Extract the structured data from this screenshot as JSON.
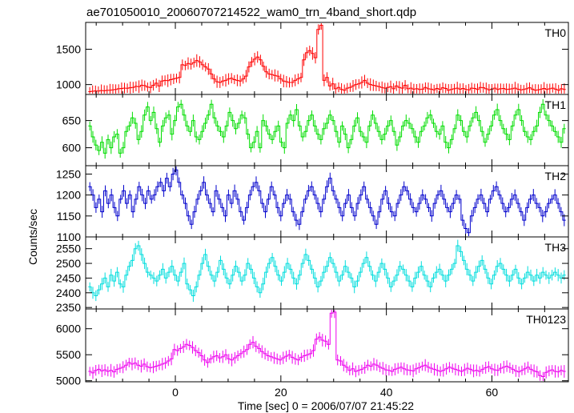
{
  "title": "ae701050010_20060707214522_wam0_trn_4band_short.qdp",
  "ylabel": "Counts/sec",
  "xlabel": "Time [sec] 0 = 2006/07/07 21:45:22",
  "chart_data": {
    "type": "line",
    "title": "ae701050010_20060707214522_wam0_trn_4band_short.qdp",
    "xlabel": "Time [sec] 0 = 2006/07/07 21:45:22",
    "ylabel": "Counts/sec",
    "xlim": [
      -17,
      74.5
    ],
    "x_start": -16.5,
    "bin_width": 1,
    "xticks": [
      0,
      20,
      40,
      60
    ],
    "grid": false,
    "panels": [
      {
        "name": "TH0",
        "color": "#ff0000",
        "ylim": [
          860,
          1880
        ],
        "yticks": [
          1000,
          1500
        ],
        "values": [
          900,
          905,
          910,
          908,
          915,
          912,
          918,
          920,
          925,
          930,
          940,
          945,
          950,
          948,
          955,
          960,
          975,
          970,
          990,
          985,
          965,
          960,
          990,
          1020,
          980,
          1050,
          1060,
          1055,
          1070,
          1080,
          1090,
          1100,
          1280,
          1270,
          1300,
          1290,
          1310,
          1340,
          1320,
          1280,
          1250,
          1220,
          1150,
          1080,
          1040,
          1030,
          1050,
          1060,
          1080,
          1090,
          1070,
          1060,
          1050,
          1080,
          1120,
          1250,
          1320,
          1360,
          1390,
          1350,
          1260,
          1180,
          1150,
          1140,
          1130,
          1120,
          1080,
          1050,
          1040,
          1030,
          1030,
          1060,
          1080,
          1100,
          1350,
          1450,
          1480,
          1440,
          1380,
          1780,
          1840,
          1060,
          1100,
          980,
          1010,
          940,
          960,
          930,
          920,
          950,
          960,
          980,
          1000,
          1010,
          1030,
          1060,
          1020,
          1000,
          990,
          980,
          970,
          960,
          950,
          960,
          970,
          940,
          980,
          960,
          950,
          990,
          940,
          950,
          935,
          940,
          930,
          935,
          960,
          940,
          935,
          925,
          945,
          930,
          955,
          945,
          920,
          930,
          940,
          950,
          935,
          945,
          930,
          925,
          950,
          945,
          930,
          960,
          955,
          940,
          925,
          935,
          950,
          930,
          940,
          945,
          930,
          935,
          940,
          950,
          935,
          925,
          930,
          940,
          955,
          935,
          920,
          925,
          935,
          945,
          930,
          940,
          950,
          935,
          920,
          940,
          930
        ]
      },
      {
        "name": "TH1",
        "color": "#00dd00",
        "ylim": [
          567,
          698
        ],
        "yticks": [
          600,
          650
        ],
        "values": [
          640,
          620,
          605,
          595,
          610,
          590,
          615,
          600,
          620,
          625,
          590,
          600,
          630,
          640,
          655,
          645,
          615,
          630,
          660,
          675,
          650,
          665,
          635,
          610,
          640,
          655,
          660,
          625,
          650,
          675,
          680,
          660,
          640,
          630,
          650,
          620,
          615,
          630,
          645,
          660,
          680,
          655,
          640,
          630,
          620,
          640,
          665,
          650,
          635,
          645,
          660,
          655,
          625,
          600,
          610,
          630,
          600,
          650,
          640,
          625,
          615,
          630,
          640,
          610,
          600,
          645,
          660,
          650,
          670,
          640,
          620,
          630,
          650,
          660,
          640,
          625,
          615,
          635,
          645,
          660,
          650,
          630,
          610,
          640,
          625,
          600,
          615,
          640,
          655,
          630,
          620,
          610,
          640,
          660,
          645,
          630,
          615,
          625,
          640,
          650,
          630,
          605,
          620,
          640,
          650,
          645,
          635,
          620,
          610,
          630,
          640,
          655,
          660,
          645,
          630,
          625,
          640,
          610,
          600,
          615,
          635,
          660,
          650,
          630,
          620,
          640,
          655,
          665,
          650,
          630,
          610,
          625,
          640,
          660,
          670,
          650,
          635,
          625,
          615,
          640,
          660,
          670,
          650,
          630,
          620,
          615,
          630,
          640,
          665,
          680,
          660,
          650,
          640,
          630,
          620,
          610,
          635
        ]
      },
      {
        "name": "TH2",
        "color": "#0000cc",
        "ylim": [
          1100,
          1270
        ],
        "yticks": [
          1100,
          1150,
          1200,
          1250
        ],
        "values": [
          1220,
          1200,
          1170,
          1190,
          1160,
          1210,
          1180,
          1200,
          1170,
          1150,
          1190,
          1210,
          1180,
          1200,
          1160,
          1190,
          1220,
          1200,
          1180,
          1210,
          1190,
          1200,
          1220,
          1230,
          1210,
          1240,
          1220,
          1250,
          1260,
          1230,
          1200,
          1180,
          1150,
          1130,
          1160,
          1190,
          1210,
          1230,
          1200,
          1180,
          1160,
          1210,
          1190,
          1170,
          1150,
          1200,
          1180,
          1210,
          1190,
          1160,
          1140,
          1170,
          1200,
          1220,
          1230,
          1210,
          1180,
          1160,
          1190,
          1220,
          1200,
          1170,
          1150,
          1180,
          1200,
          1190,
          1160,
          1140,
          1130,
          1160,
          1190,
          1210,
          1220,
          1200,
          1180,
          1160,
          1190,
          1220,
          1240,
          1210,
          1190,
          1170,
          1150,
          1180,
          1200,
          1170,
          1150,
          1180,
          1200,
          1220,
          1190,
          1170,
          1150,
          1130,
          1160,
          1190,
          1210,
          1180,
          1160,
          1150,
          1180,
          1200,
          1220,
          1210,
          1190,
          1170,
          1160,
          1180,
          1200,
          1190,
          1170,
          1150,
          1180,
          1200,
          1210,
          1190,
          1170,
          1160,
          1180,
          1200,
          1190,
          1140,
          1120,
          1110,
          1150,
          1170,
          1190,
          1200,
          1180,
          1160,
          1190,
          1210,
          1220,
          1200,
          1180,
          1160,
          1170,
          1190,
          1200,
          1180,
          1160,
          1140,
          1170,
          1190,
          1200,
          1180,
          1170,
          1150,
          1160,
          1180,
          1190,
          1200,
          1180,
          1160,
          1140
        ]
      },
      {
        "name": "TH3",
        "color": "#00dddd",
        "ylim": [
          2345,
          2590
        ],
        "yticks": [
          2350,
          2400,
          2450,
          2500,
          2550
        ],
        "values": [
          2420,
          2400,
          2390,
          2410,
          2430,
          2450,
          2420,
          2460,
          2440,
          2470,
          2430,
          2420,
          2460,
          2490,
          2510,
          2550,
          2560,
          2530,
          2500,
          2470,
          2460,
          2450,
          2440,
          2460,
          2480,
          2450,
          2470,
          2490,
          2460,
          2440,
          2470,
          2500,
          2430,
          2410,
          2390,
          2420,
          2460,
          2500,
          2530,
          2490,
          2460,
          2440,
          2470,
          2510,
          2480,
          2450,
          2430,
          2460,
          2490,
          2470,
          2440,
          2460,
          2500,
          2480,
          2450,
          2420,
          2400,
          2430,
          2470,
          2500,
          2520,
          2490,
          2460,
          2440,
          2470,
          2500,
          2480,
          2450,
          2430,
          2460,
          2500,
          2530,
          2510,
          2480,
          2450,
          2420,
          2440,
          2470,
          2490,
          2520,
          2500,
          2470,
          2440,
          2460,
          2490,
          2470,
          2450,
          2420,
          2440,
          2470,
          2500,
          2520,
          2490,
          2460,
          2440,
          2470,
          2500,
          2480,
          2450,
          2420,
          2440,
          2460,
          2490,
          2480,
          2460,
          2440,
          2420,
          2450,
          2470,
          2490,
          2460,
          2440,
          2420,
          2450,
          2470,
          2480,
          2460,
          2440,
          2460,
          2480,
          2500,
          2560,
          2540,
          2510,
          2480,
          2460,
          2440,
          2470,
          2490,
          2510,
          2480,
          2450,
          2430,
          2460,
          2490,
          2500,
          2480,
          2460,
          2440,
          2460,
          2480,
          2450,
          2430,
          2450,
          2470,
          2460,
          2440,
          2460,
          2450,
          2470,
          2460,
          2450,
          2460,
          2470,
          2460,
          2450,
          2460
        ]
      },
      {
        "name": "TH0123",
        "color": "#ee00ee",
        "ylim": [
          4980,
          6380
        ],
        "yticks": [
          5000,
          5500,
          6000
        ],
        "values": [
          5180,
          5150,
          5200,
          5220,
          5190,
          5210,
          5180,
          5200,
          5170,
          5220,
          5240,
          5260,
          5300,
          5350,
          5320,
          5340,
          5300,
          5280,
          5320,
          5270,
          5250,
          5260,
          5280,
          5300,
          5320,
          5340,
          5380,
          5420,
          5600,
          5580,
          5620,
          5650,
          5700,
          5680,
          5640,
          5580,
          5540,
          5480,
          5400,
          5350,
          5420,
          5460,
          5480,
          5440,
          5460,
          5500,
          5420,
          5400,
          5440,
          5480,
          5520,
          5560,
          5600,
          5700,
          5740,
          5660,
          5620,
          5560,
          5520,
          5480,
          5460,
          5440,
          5420,
          5400,
          5440,
          5470,
          5500,
          5450,
          5420,
          5400,
          5450,
          5480,
          5500,
          5520,
          5580,
          5800,
          5840,
          5780,
          5760,
          5700,
          6300,
          6320,
          5400,
          5380,
          5300,
          5260,
          5200,
          5230,
          5180,
          5200,
          5220,
          5250,
          5300,
          5280,
          5320,
          5300,
          5260,
          5240,
          5210,
          5200,
          5180,
          5220,
          5240,
          5260,
          5230,
          5210,
          5200,
          5190,
          5230,
          5250,
          5280,
          5300,
          5260,
          5240,
          5220,
          5200,
          5180,
          5200,
          5230,
          5260,
          5240,
          5220,
          5200,
          5180,
          5210,
          5240,
          5220,
          5190,
          5200,
          5180,
          5220,
          5250,
          5270,
          5230,
          5210,
          5200,
          5240,
          5260,
          5280,
          5250,
          5220,
          5190,
          5170,
          5200,
          5230,
          5260,
          5220,
          5190,
          5170,
          5100,
          5080,
          5160,
          5190,
          5210,
          5180,
          5170,
          5200,
          5180
        ]
      }
    ]
  }
}
